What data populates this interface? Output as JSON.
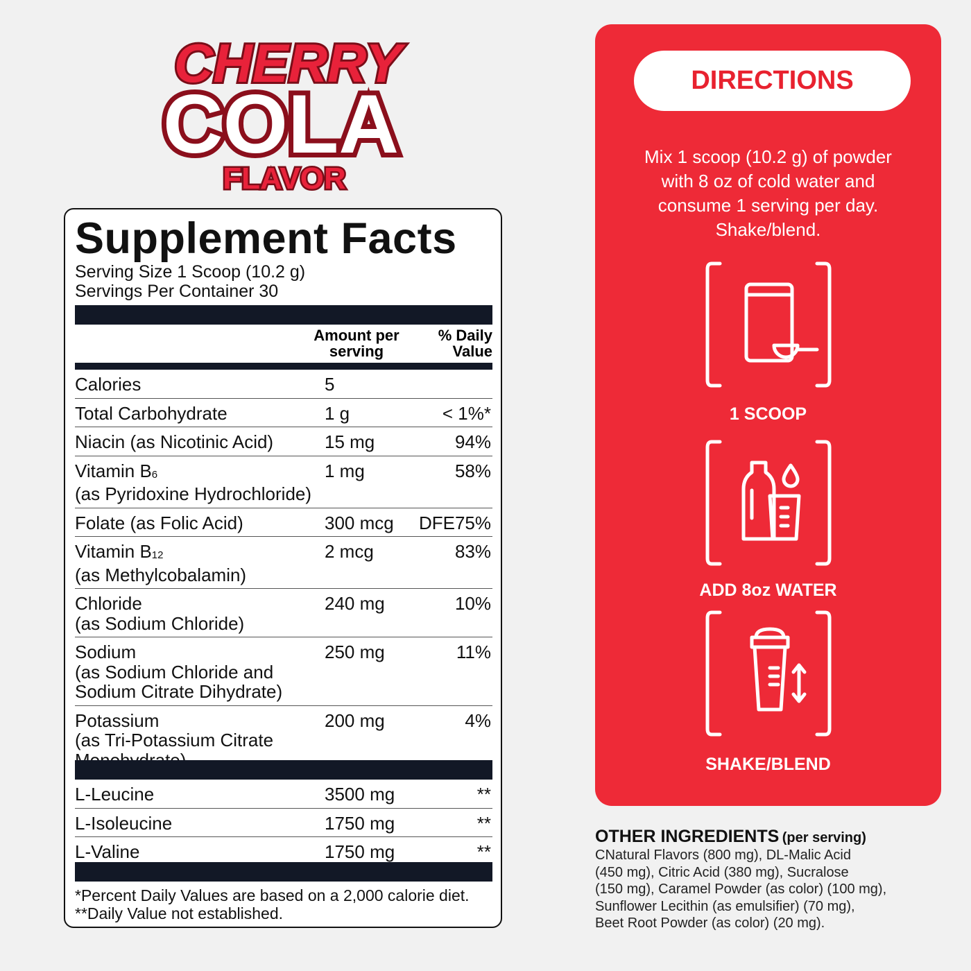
{
  "logo": {
    "line1": "CHERRY",
    "line2": "COLA",
    "line3": "FLAVOR"
  },
  "facts": {
    "title": "Supplement Facts",
    "serving_size": "Serving Size 1 Scoop (10.2 g)",
    "servings": "Servings Per Container 30",
    "header": {
      "amount": "Amount per serving",
      "dv": "% Daily Value"
    },
    "rows": [
      {
        "name": "Calories",
        "amount": "5"
      },
      {
        "name": "Total Carbohydrate",
        "amount": "1 g",
        "dv": "< 1%*"
      },
      {
        "name": "Niacin (as Nicotinic Acid)",
        "amount": "15 mg",
        "dv": "94%"
      },
      {
        "name": "Vitamin B",
        "sub": "6",
        "detail": [
          "(as Pyridoxine Hydrochloride)"
        ],
        "amount": "1 mg",
        "dv": "58%"
      },
      {
        "name": "Folate (as Folic Acid)",
        "amount": "300 mcg",
        "dv": "DFE75%"
      },
      {
        "name": "Vitamin B",
        "sub": "12",
        "detail": [
          "(as Methylcobalamin)"
        ],
        "amount": "2 mcg",
        "dv": "83%"
      },
      {
        "name": "Chloride",
        "detail": [
          "(as Sodium Chloride)"
        ],
        "amount": "240 mg",
        "dv": "10%"
      },
      {
        "name": "Sodium",
        "detail": [
          "(as Sodium Chloride and",
          "Sodium Citrate Dihydrate)"
        ],
        "amount": "250 mg",
        "dv": "11%"
      },
      {
        "name": "Potassium",
        "detail": [
          "(as Tri-Potassium Citrate",
          "Monohydrate)"
        ],
        "amount": "200 mg",
        "dv": "4%"
      }
    ],
    "amino_rows": [
      {
        "name": "L-Leucine",
        "amount": "3500 mg",
        "dv": "**"
      },
      {
        "name": "L-Isoleucine",
        "amount": "1750 mg",
        "dv": "**"
      },
      {
        "name": "L-Valine",
        "amount": "1750 mg",
        "dv": "**"
      }
    ],
    "footnotes": [
      "*Percent Daily Values are based on a 2,000 calorie diet.",
      "**Daily Value not established."
    ]
  },
  "directions": {
    "title": "DIRECTIONS",
    "text": [
      "Mix 1 scoop (10.2 g) of powder",
      "with 8 oz of cold water and",
      "consume 1 serving per day.",
      "Shake/blend."
    ],
    "steps": [
      "1 SCOOP",
      "ADD 8oz WATER",
      "SHAKE/BLEND"
    ]
  },
  "other_ingredients": {
    "title": "OTHER INGREDIENTS",
    "qualifier": "(per serving)",
    "lines": [
      "CNatural Flavors (800 mg), DL-Malic Acid",
      "(450 mg), Citric Acid (380 mg), Sucralose",
      "(150 mg), Caramel Powder (as color) (100 mg),",
      "Sunflower Lecithin (as emulsifier) (70 mg),",
      "Beet Root Powder (as color) (20 mg)."
    ]
  }
}
